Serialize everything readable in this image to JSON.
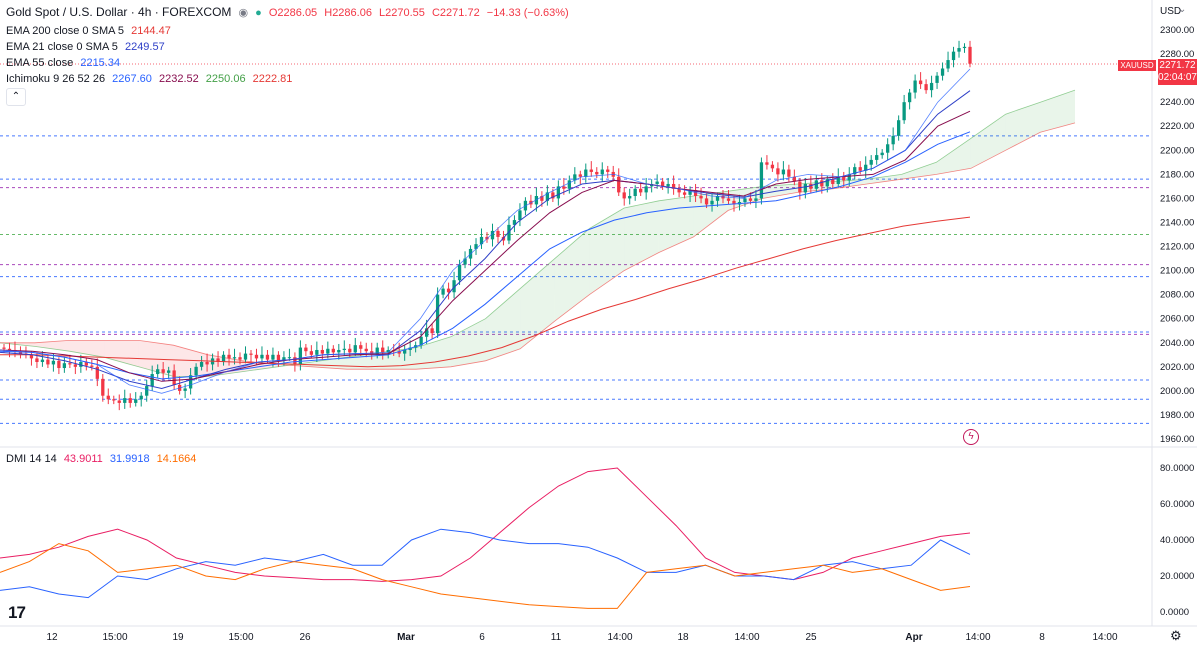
{
  "header": {
    "symbol_title": "Gold Spot / U.S. Dollar · 4h · FOREXCOM",
    "open": "O2286.05",
    "high": "H2286.06",
    "low": "L2270.55",
    "close": "C2271.72",
    "change": "−14.33 (−0.63%)"
  },
  "indicators": [
    {
      "label": "EMA 200 close 0 SMA 5",
      "value": "2144.47",
      "color": "#e53935"
    },
    {
      "label": "EMA 21 close 0 SMA 5",
      "value": "2249.57",
      "color": "#2e3fc7"
    },
    {
      "label": "EMA 55 close",
      "value": "2215.34",
      "color": "#2962ff"
    }
  ],
  "ichimoku": {
    "label": "Ichimoku 9 26 52 26",
    "values": [
      {
        "v": "2267.60",
        "color": "#2962ff"
      },
      {
        "v": "2232.52",
        "color": "#880e4f"
      },
      {
        "v": "2250.06",
        "color": "#43a047"
      },
      {
        "v": "2222.81",
        "color": "#e53935"
      }
    ]
  },
  "dmi_legend": {
    "label": "DMI 14 14",
    "values": [
      {
        "v": "43.9011",
        "color": "#e91e63"
      },
      {
        "v": "31.9918",
        "color": "#2962ff"
      },
      {
        "v": "14.1664",
        "color": "#ff6d00"
      }
    ]
  },
  "price_axis": {
    "currency": "USD",
    "badge_symbol": "XAUUSD",
    "badge_price": "2271.72",
    "badge_timer": "02:04:07",
    "ticks": [
      "2300.00",
      "2280.00",
      "2260.00",
      "2240.00",
      "2220.00",
      "2200.00",
      "2180.00",
      "2160.00",
      "2140.00",
      "2120.00",
      "2100.00",
      "2080.00",
      "2060.00",
      "2040.00",
      "2020.00",
      "2000.00",
      "1980.00",
      "1960.00"
    ]
  },
  "dmi_axis": {
    "ticks": [
      "80.0000",
      "60.0000",
      "40.0000",
      "20.0000",
      "0.0000"
    ]
  },
  "time_axis": {
    "labels": [
      "12",
      "15:00",
      "19",
      "15:00",
      "26",
      "Mar",
      "6",
      "11",
      "14:00",
      "18",
      "14:00",
      "25",
      "Apr",
      "14:00",
      "8",
      "14:00"
    ]
  },
  "chart_data": [
    {
      "type": "candlestick",
      "title": "Gold Spot / U.S. Dollar · 4h · FOREXCOM",
      "ylim": [
        1960,
        2300
      ],
      "horizontal_levels": [
        {
          "value": 2212,
          "color": "#2962ff"
        },
        {
          "value": 2176,
          "color": "#2962ff"
        },
        {
          "value": 2169,
          "color": "#9c27b0"
        },
        {
          "value": 2130,
          "color": "#4caf50"
        },
        {
          "value": 2105,
          "color": "#9c27b0"
        },
        {
          "value": 2095,
          "color": "#2962ff"
        },
        {
          "value": 2049,
          "color": "#2962ff"
        },
        {
          "value": 2047,
          "color": "#9c27b0"
        },
        {
          "value": 2009,
          "color": "#2962ff"
        },
        {
          "value": 1993,
          "color": "#2962ff"
        },
        {
          "value": 1973,
          "color": "#2962ff"
        }
      ],
      "last_close": 2271.72,
      "closes": [
        2035,
        2034,
        2033,
        2031,
        2030,
        2027,
        2024,
        2026,
        2022,
        2025,
        2019,
        2023,
        2022,
        2020,
        2024,
        2021,
        2020,
        2010,
        1996,
        1993,
        1992,
        1990,
        1994,
        1990,
        1993,
        1996,
        2004,
        2014,
        2018,
        2015,
        2017,
        2005,
        2000,
        2002,
        2013,
        2020,
        2024,
        2022,
        2027,
        2024,
        2030,
        2027,
        2028,
        2026,
        2031,
        2030,
        2027,
        2030,
        2026,
        2030,
        2025,
        2028,
        2028,
        2022,
        2036,
        2033,
        2030,
        2034,
        2031,
        2035,
        2032,
        2034,
        2035,
        2032,
        2038,
        2035,
        2033,
        2030,
        2036,
        2032,
        2034,
        2033,
        2031,
        2034,
        2036,
        2038,
        2045,
        2052,
        2048,
        2080,
        2085,
        2082,
        2092,
        2105,
        2110,
        2118,
        2122,
        2128,
        2126,
        2133,
        2128,
        2125,
        2138,
        2142,
        2150,
        2158,
        2155,
        2162,
        2158,
        2165,
        2160,
        2170,
        2168,
        2175,
        2180,
        2178,
        2184,
        2182,
        2180,
        2184,
        2182,
        2178,
        2165,
        2160,
        2162,
        2168,
        2165,
        2170,
        2172,
        2174,
        2170,
        2172,
        2168,
        2165,
        2163,
        2167,
        2162,
        2160,
        2155,
        2158,
        2162,
        2160,
        2158,
        2155,
        2157,
        2160,
        2158,
        2160,
        2190,
        2188,
        2185,
        2180,
        2184,
        2178,
        2174,
        2165,
        2172,
        2168,
        2175,
        2170,
        2176,
        2172,
        2178,
        2175,
        2180,
        2186,
        2183,
        2188,
        2192,
        2196,
        2198,
        2205,
        2212,
        2225,
        2240,
        2248,
        2258,
        2255,
        2250,
        2256,
        2262,
        2268,
        2275,
        2282,
        2285,
        2286,
        2272
      ],
      "ema200": [
        2030,
        2030,
        2029,
        2028,
        2027,
        2026,
        2025,
        2024,
        2023,
        2022,
        2021,
        2020,
        2021,
        2024,
        2029,
        2036,
        2046,
        2058,
        2068,
        2076,
        2085,
        2093,
        2102,
        2110,
        2118,
        2125,
        2131,
        2137,
        2141,
        2144.47
      ],
      "ema21": [
        2032,
        2030,
        2025,
        2018,
        2008,
        2002,
        2010,
        2018,
        2024,
        2026,
        2030,
        2031,
        2030,
        2050,
        2085,
        2110,
        2140,
        2160,
        2172,
        2175,
        2172,
        2168,
        2164,
        2161,
        2166,
        2170,
        2178,
        2185,
        2200,
        2230,
        2249.57
      ],
      "ema55": [
        2033,
        2032,
        2028,
        2022,
        2015,
        2010,
        2012,
        2016,
        2020,
        2024,
        2026,
        2028,
        2030,
        2038,
        2052,
        2072,
        2095,
        2118,
        2132,
        2142,
        2148,
        2152,
        2154,
        2156,
        2158,
        2164,
        2170,
        2178,
        2190,
        2205,
        2215.34
      ],
      "tenkan": [
        2034,
        2032,
        2028,
        2022,
        2005,
        1998,
        2006,
        2016,
        2024,
        2026,
        2030,
        2031,
        2032,
        2060,
        2100,
        2125,
        2150,
        2165,
        2178,
        2180,
        2172,
        2168,
        2162,
        2160,
        2175,
        2180,
        2178,
        2185,
        2200,
        2240,
        2267.6
      ],
      "kijun": [
        2034,
        2033,
        2030,
        2026,
        2015,
        2008,
        2010,
        2016,
        2022,
        2026,
        2028,
        2030,
        2031,
        2045,
        2075,
        2100,
        2125,
        2148,
        2165,
        2175,
        2172,
        2168,
        2165,
        2162,
        2172,
        2176,
        2178,
        2180,
        2192,
        2220,
        2232.52
      ],
      "senkou_a": [
        2040,
        2037,
        2033,
        2028,
        2020,
        2012,
        2012,
        2016,
        2020,
        2024,
        2028,
        2032,
        2036,
        2045,
        2060,
        2085,
        2110,
        2135,
        2152,
        2158,
        2162,
        2166,
        2170,
        2172,
        2174,
        2176,
        2180,
        2190,
        2210,
        2230,
        2240,
        2250.06
      ],
      "senkou_b": [
        2040,
        2040,
        2042,
        2042,
        2042,
        2038,
        2030,
        2025,
        2022,
        2020,
        2018,
        2018,
        2018,
        2020,
        2025,
        2035,
        2058,
        2080,
        2100,
        2115,
        2128,
        2150,
        2160,
        2165,
        2168,
        2172,
        2176,
        2180,
        2185,
        2200,
        2215,
        2222.81
      ]
    },
    {
      "type": "line",
      "title": "DMI 14 14",
      "ylim": [
        0,
        80
      ],
      "series": [
        {
          "name": "43.9011",
          "color": "#e91e63",
          "values": [
            30,
            32,
            36,
            42,
            46,
            40,
            30,
            26,
            22,
            20,
            19,
            18,
            18,
            17,
            18,
            20,
            30,
            44,
            58,
            70,
            78,
            80,
            64,
            48,
            30,
            22,
            20,
            18,
            22,
            30,
            34,
            38,
            42,
            43.9
          ]
        },
        {
          "name": "31.9918",
          "color": "#2962ff",
          "values": [
            12,
            14,
            10,
            8,
            20,
            18,
            24,
            28,
            26,
            30,
            28,
            32,
            26,
            26,
            40,
            46,
            44,
            40,
            38,
            38,
            36,
            30,
            22,
            22,
            26,
            20,
            20,
            18,
            26,
            28,
            24,
            26,
            40,
            31.99
          ]
        },
        {
          "name": "14.1664",
          "color": "#ff6d00",
          "values": [
            22,
            28,
            38,
            34,
            22,
            24,
            26,
            20,
            18,
            24,
            28,
            26,
            24,
            18,
            14,
            10,
            8,
            6,
            4,
            3,
            2,
            2,
            22,
            24,
            26,
            20,
            22,
            24,
            26,
            22,
            24,
            18,
            12,
            14.17
          ]
        }
      ]
    }
  ]
}
